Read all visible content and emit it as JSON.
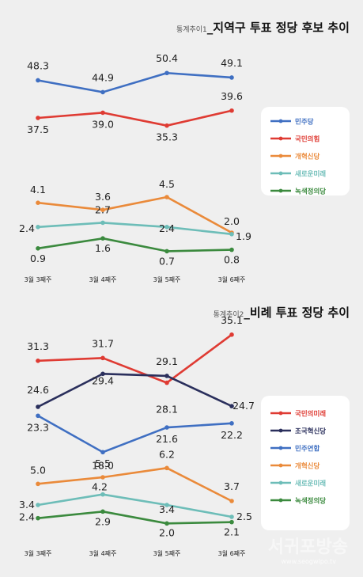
{
  "watermark": {
    "name": "서귀포방송",
    "url": "www.seogwipo.tv"
  },
  "chart_data": [
    {
      "type": "line",
      "title_prefix": "통계추이1",
      "title": "_지역구 투표 정당 후보 추이",
      "categories": [
        "3월 3째주",
        "3월 4째주",
        "3월 5째주",
        "3월 6째주"
      ],
      "series": [
        {
          "name": "민주당",
          "color": "#3f6fc2",
          "values": [
            48.3,
            44.9,
            50.4,
            49.1
          ]
        },
        {
          "name": "국민의힘",
          "color": "#df3b33",
          "values": [
            37.5,
            39.0,
            35.3,
            39.6
          ]
        },
        {
          "name": "개혁신당",
          "color": "#ea8a3a",
          "values": [
            4.1,
            3.6,
            4.5,
            2.0
          ]
        },
        {
          "name": "새로운미래",
          "color": "#6dbdb8",
          "values": [
            2.4,
            2.7,
            2.4,
            1.9
          ]
        },
        {
          "name": "녹색정의당",
          "color": "#3b8a3e",
          "values": [
            0.9,
            1.6,
            0.7,
            0.8
          ]
        }
      ]
    },
    {
      "type": "line",
      "title_prefix": "통계추이2",
      "title": "_비례 투표 정당 추이",
      "categories": [
        "3월 3째주",
        "3월 4째주",
        "3월 5째주",
        "3월 6째주"
      ],
      "series": [
        {
          "name": "국민의미래",
          "color": "#df3b33",
          "values": [
            31.3,
            31.7,
            28.1,
            35.1
          ]
        },
        {
          "name": "조국혁신당",
          "color": "#2a2f5c",
          "values": [
            24.6,
            29.4,
            29.1,
            24.7
          ]
        },
        {
          "name": "민주연합",
          "color": "#3f6fc2",
          "values": [
            23.3,
            18.0,
            21.6,
            22.2
          ]
        },
        {
          "name": "개혁신당",
          "color": "#ea8a3a",
          "values": [
            5.0,
            5.5,
            6.2,
            3.7
          ]
        },
        {
          "name": "새로운미래",
          "color": "#6dbdb8",
          "values": [
            3.4,
            4.2,
            3.4,
            2.5
          ]
        },
        {
          "name": "녹색정의당",
          "color": "#3b8a3e",
          "values": [
            2.4,
            2.9,
            2.0,
            2.1
          ]
        }
      ]
    }
  ]
}
